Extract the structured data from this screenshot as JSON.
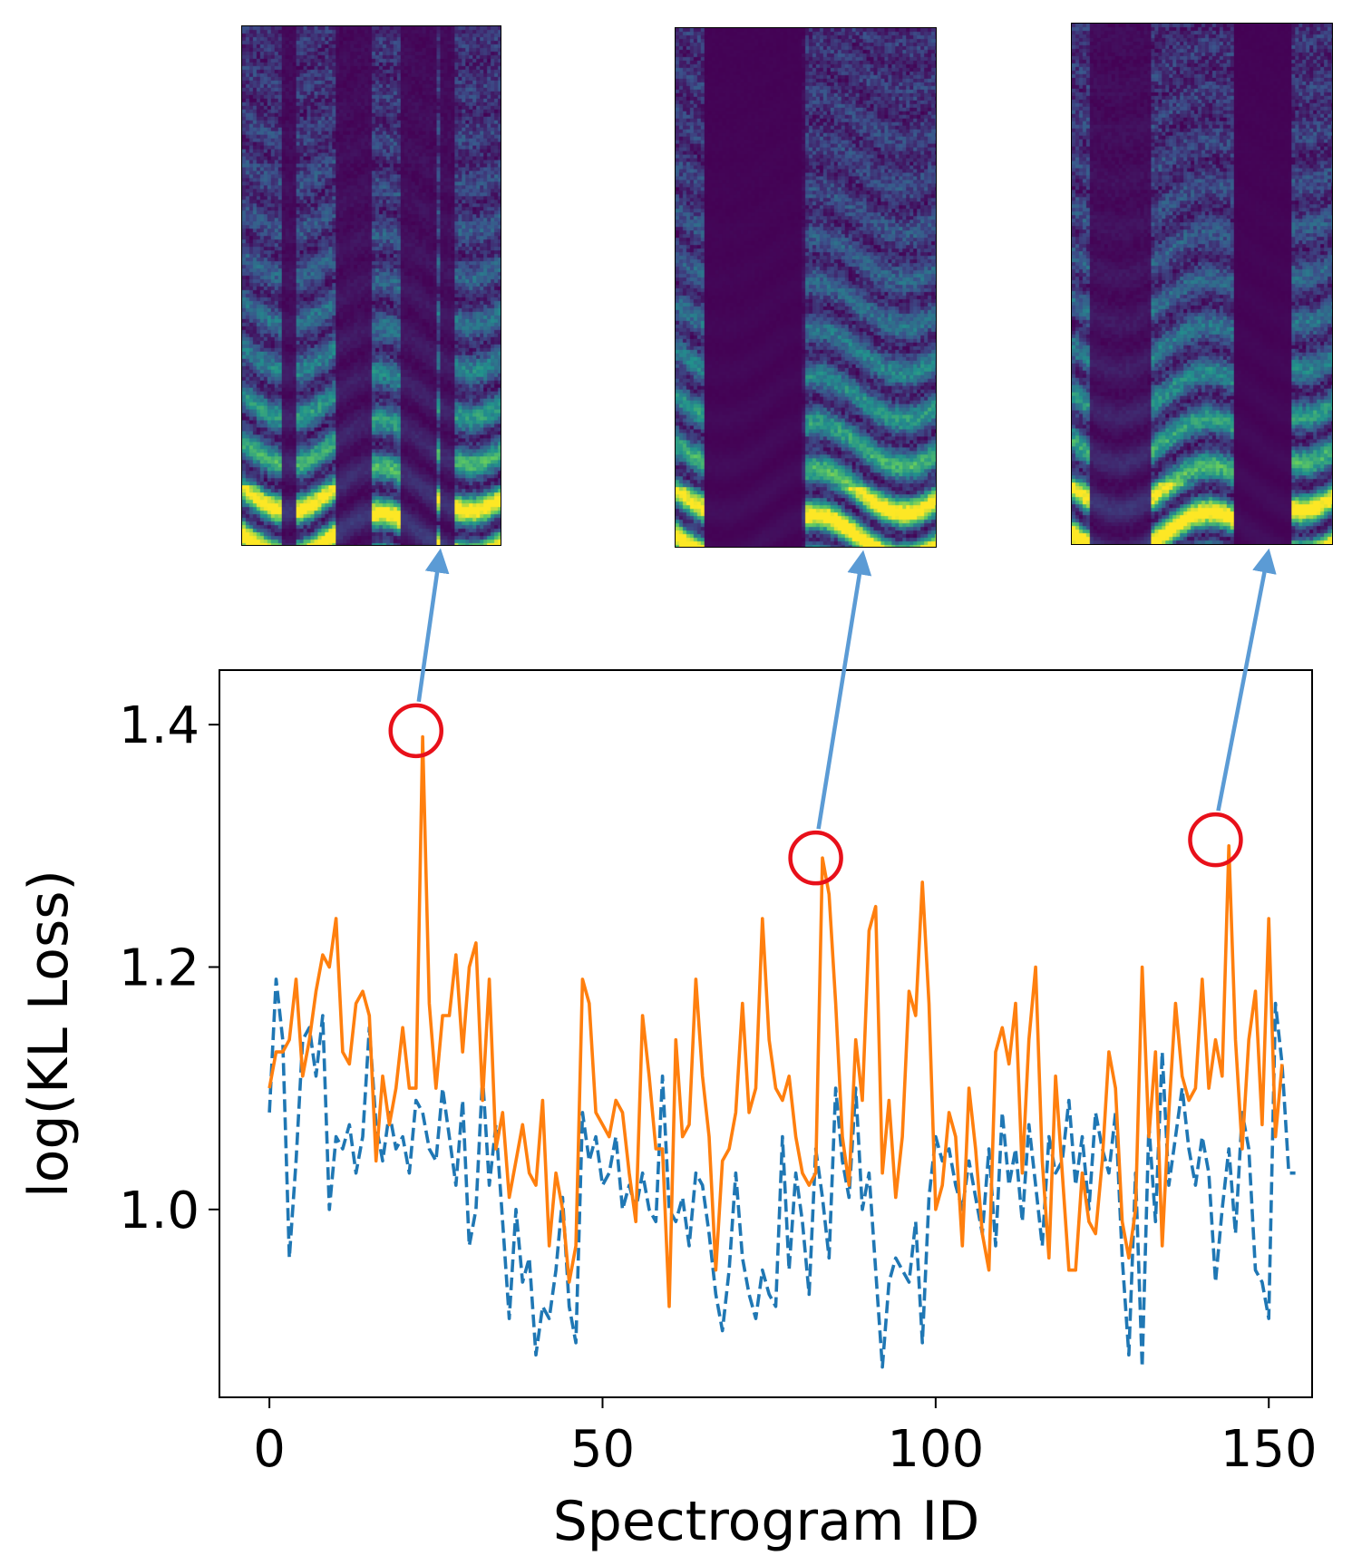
{
  "chart_data": {
    "type": "line",
    "title": "",
    "xlabel": "Spectrogram ID",
    "ylabel": "log(KL Loss)",
    "xlim": [
      -7.5,
      156.5
    ],
    "ylim": [
      0.845,
      1.445
    ],
    "xticks": [
      0,
      50,
      100,
      150
    ],
    "yticks": [
      1.0,
      1.2,
      1.4
    ],
    "xtick_labels": [
      "0",
      "50",
      "100",
      "150"
    ],
    "ytick_labels": [
      "1.0",
      "1.2",
      "1.4"
    ],
    "grid": false,
    "legend": null,
    "series": [
      {
        "name": "orange",
        "style": "solid",
        "color": "#ff7f0e",
        "values": [
          1.1,
          1.13,
          1.13,
          1.14,
          1.19,
          1.11,
          1.14,
          1.18,
          1.21,
          1.2,
          1.24,
          1.13,
          1.12,
          1.17,
          1.18,
          1.16,
          1.04,
          1.11,
          1.07,
          1.1,
          1.15,
          1.1,
          1.1,
          1.39,
          1.17,
          1.1,
          1.16,
          1.16,
          1.21,
          1.13,
          1.2,
          1.22,
          1.09,
          1.19,
          1.05,
          1.08,
          1.01,
          1.04,
          1.07,
          1.03,
          1.02,
          1.09,
          0.97,
          1.03,
          1.0,
          0.94,
          0.97,
          1.19,
          1.17,
          1.08,
          1.07,
          1.06,
          1.09,
          1.08,
          1.03,
          0.99,
          1.16,
          1.11,
          1.05,
          1.05,
          0.92,
          1.14,
          1.06,
          1.07,
          1.19,
          1.11,
          1.06,
          0.95,
          1.04,
          1.05,
          1.08,
          1.17,
          1.08,
          1.1,
          1.24,
          1.14,
          1.1,
          1.09,
          1.11,
          1.06,
          1.03,
          1.02,
          1.03,
          1.29,
          1.26,
          1.17,
          1.06,
          1.02,
          1.14,
          1.09,
          1.23,
          1.25,
          1.03,
          1.09,
          1.01,
          1.06,
          1.18,
          1.16,
          1.27,
          1.17,
          1.0,
          1.02,
          1.08,
          1.06,
          0.97,
          1.1,
          1.05,
          0.98,
          0.95,
          1.13,
          1.15,
          1.12,
          1.17,
          1.03,
          1.14,
          1.2,
          1.04,
          0.96,
          1.11,
          1.03,
          0.95,
          0.95,
          1.03,
          0.99,
          0.98,
          1.04,
          1.13,
          1.1,
          0.99,
          0.96,
          1.0,
          1.2,
          1.06,
          1.13,
          0.97,
          1.08,
          1.17,
          1.11,
          1.09,
          1.1,
          1.19,
          1.1,
          1.14,
          1.11,
          1.3,
          1.14,
          1.05,
          1.14,
          1.18,
          1.07,
          1.24,
          1.06,
          1.12
        ]
      },
      {
        "name": "blue",
        "style": "dashed",
        "color": "#1f77b4",
        "values": [
          1.08,
          1.19,
          1.14,
          0.96,
          1.04,
          1.14,
          1.15,
          1.11,
          1.16,
          1.0,
          1.06,
          1.05,
          1.07,
          1.03,
          1.06,
          1.15,
          1.07,
          1.04,
          1.08,
          1.05,
          1.06,
          1.03,
          1.09,
          1.08,
          1.05,
          1.04,
          1.1,
          1.06,
          1.02,
          1.09,
          0.97,
          1.0,
          1.11,
          1.02,
          1.07,
          0.99,
          0.91,
          1.0,
          0.94,
          0.96,
          0.88,
          0.92,
          0.91,
          0.95,
          1.01,
          0.92,
          0.89,
          1.08,
          1.04,
          1.06,
          1.02,
          1.03,
          1.06,
          1.0,
          1.02,
          1.0,
          1.03,
          1.0,
          0.99,
          1.11,
          1.0,
          0.99,
          1.01,
          0.97,
          1.03,
          1.02,
          0.98,
          0.93,
          0.9,
          0.95,
          1.03,
          0.96,
          0.93,
          0.91,
          0.95,
          0.93,
          0.92,
          1.06,
          0.95,
          1.03,
          0.99,
          0.93,
          1.05,
          1.01,
          0.96,
          1.1,
          1.04,
          1.01,
          1.1,
          1.0,
          1.03,
          0.95,
          0.87,
          0.94,
          0.96,
          0.95,
          0.94,
          0.99,
          0.89,
          1.01,
          1.06,
          1.04,
          1.05,
          1.02,
          1.0,
          1.04,
          1.01,
          0.98,
          1.05,
          0.97,
          1.08,
          1.02,
          1.05,
          0.99,
          1.07,
          1.02,
          0.97,
          1.06,
          1.03,
          1.04,
          1.09,
          1.02,
          1.06,
          1.0,
          1.08,
          1.05,
          1.03,
          1.08,
          0.96,
          0.88,
          1.03,
          0.87,
          1.07,
          0.99,
          1.13,
          1.02,
          1.06,
          1.1,
          1.05,
          1.02,
          1.06,
          1.03,
          0.94,
          1.0,
          1.05,
          0.98,
          1.08,
          1.05,
          0.95,
          0.94,
          0.91,
          1.17,
          1.12,
          1.03,
          1.03
        ]
      }
    ],
    "annotations": [
      {
        "id": "peak-1",
        "x": 22,
        "y": 1.395,
        "marker": "circle",
        "color": "#e8101a",
        "arrow_to": "spectrogram-1"
      },
      {
        "id": "peak-2",
        "x": 82,
        "y": 1.29,
        "marker": "circle",
        "color": "#e8101a",
        "arrow_to": "spectrogram-2"
      },
      {
        "id": "peak-3",
        "x": 142,
        "y": 1.305,
        "marker": "circle",
        "color": "#e8101a",
        "arrow_to": "spectrogram-3"
      }
    ],
    "arrow_color": "#5b9bd5",
    "insets": [
      {
        "id": "spectrogram-1",
        "type": "heatmap",
        "colormap": "viridis"
      },
      {
        "id": "spectrogram-2",
        "type": "heatmap",
        "colormap": "viridis"
      },
      {
        "id": "spectrogram-3",
        "type": "heatmap",
        "colormap": "viridis"
      }
    ]
  }
}
